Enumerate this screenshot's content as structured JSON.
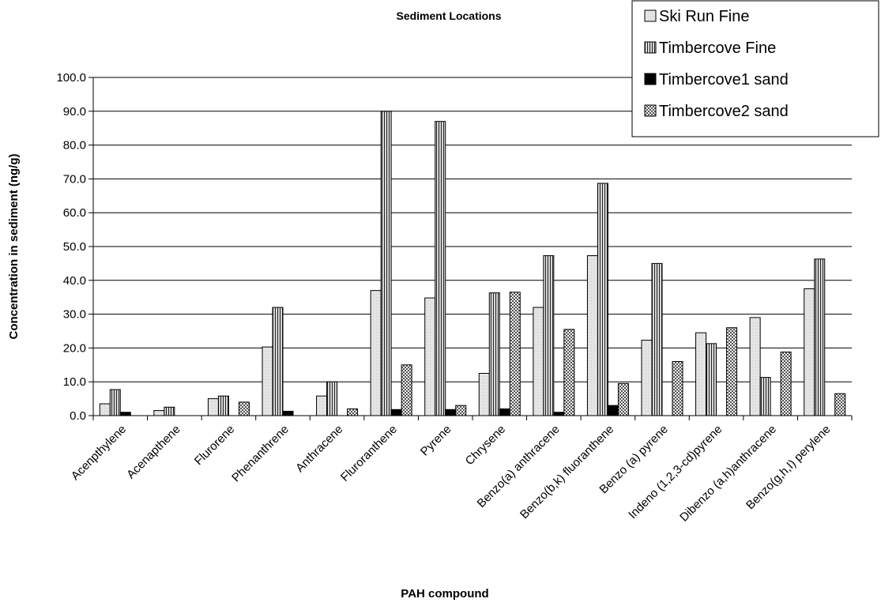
{
  "chart_data": {
    "type": "bar",
    "title": "Sediment Locations",
    "xlabel": "PAH compound",
    "ylabel": "Concentration in sediment (ng/g)",
    "ylim": [
      0,
      100
    ],
    "y_ticks": [
      0,
      10,
      20,
      30,
      40,
      50,
      60,
      70,
      80,
      90,
      100
    ],
    "y_tick_labels": [
      "0.0",
      "10.0",
      "20.0",
      "30.0",
      "40.0",
      "50.0",
      "60.0",
      "70.0",
      "80.0",
      "90.0",
      "100.0"
    ],
    "grid": "horizontal",
    "legend_position": "top-right",
    "categories": [
      "Acenpthylene",
      "Acenapthene",
      "Flurorene",
      "Phenanthrene",
      "Anthracene",
      "Fluroranthene",
      "Pyrene",
      "Chrysene",
      "Benzo(a) anthracene",
      "Benzo(b,k) fluoranthene",
      "Benzo (a) pyrene",
      "Indeno (1,2,3-cd)pyrene",
      "Dibenzo (a,h)anthracene",
      "Benzo(g,h,I) perylene"
    ],
    "series": [
      {
        "name": "Ski Run Fine",
        "pattern": "light",
        "color": "#e0e0e0",
        "values": [
          3.5,
          1.5,
          5.0,
          20.3,
          5.8,
          37.0,
          34.8,
          12.5,
          32.0,
          47.3,
          22.3,
          24.5,
          29.0,
          37.5
        ]
      },
      {
        "name": "Timbercove Fine",
        "pattern": "vertical-stripes",
        "color": "#9a9a9a",
        "values": [
          7.7,
          2.5,
          5.8,
          32.0,
          10.0,
          90.0,
          87.0,
          36.3,
          47.3,
          68.7,
          45.0,
          21.3,
          11.3,
          46.3
        ]
      },
      {
        "name": "Timbercove1 sand",
        "pattern": "solid",
        "color": "#000000",
        "values": [
          1.0,
          0,
          0,
          1.3,
          0,
          1.8,
          1.8,
          2.0,
          1.0,
          3.0,
          0,
          0,
          0,
          0
        ]
      },
      {
        "name": "Timbercove2 sand",
        "pattern": "checker",
        "color": "#bcbcbc",
        "values": [
          0,
          0,
          4.0,
          0,
          2.0,
          15.0,
          3.0,
          36.5,
          25.5,
          9.5,
          16.0,
          26.0,
          18.8,
          6.5
        ]
      }
    ]
  }
}
